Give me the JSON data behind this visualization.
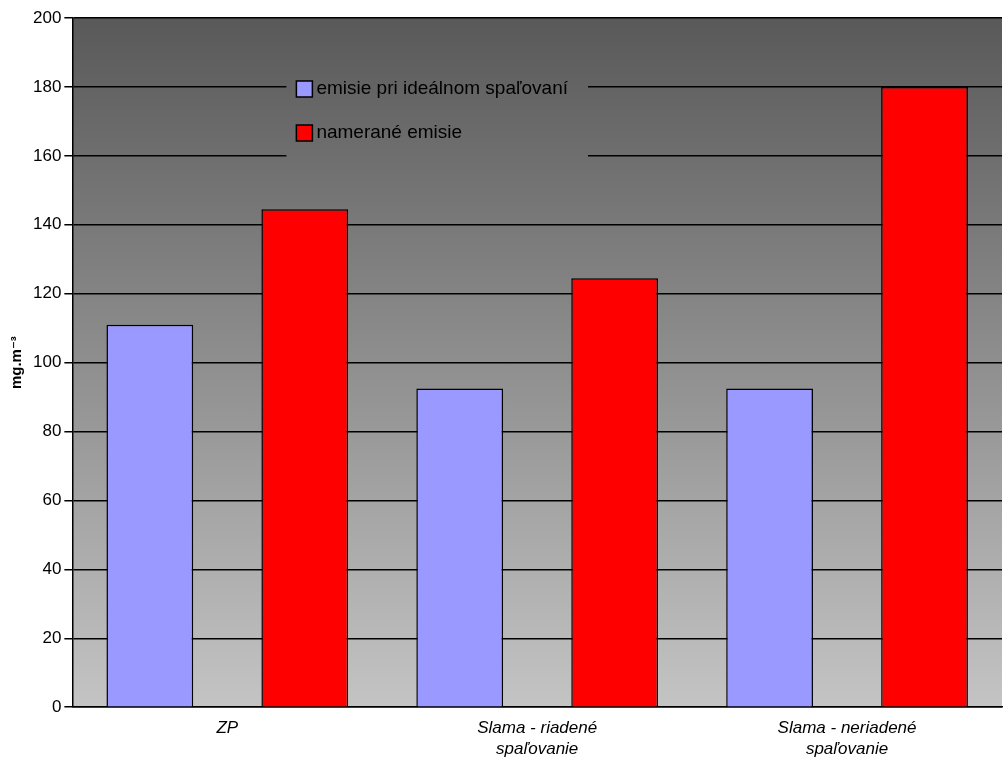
{
  "chart_data": {
    "type": "bar",
    "ylabel": "mg.m⁻³",
    "categories": [
      "ZP",
      "Slama - riadené spaľovanie",
      "Slama - neriadené spaľovanie"
    ],
    "series": [
      {
        "name": "emisie pri ideálnom spaľovaní",
        "color": "#9999ff",
        "values": [
          111,
          92.5,
          92.5
        ]
      },
      {
        "name": "namerané emisie",
        "color": "#ff0000",
        "values": [
          144.5,
          124.5,
          180
        ]
      }
    ],
    "ylim": [
      0,
      200
    ],
    "yticks": [
      0,
      20,
      40,
      60,
      80,
      100,
      120,
      140,
      160,
      180,
      200
    ],
    "grid": "y",
    "legend": "top"
  }
}
